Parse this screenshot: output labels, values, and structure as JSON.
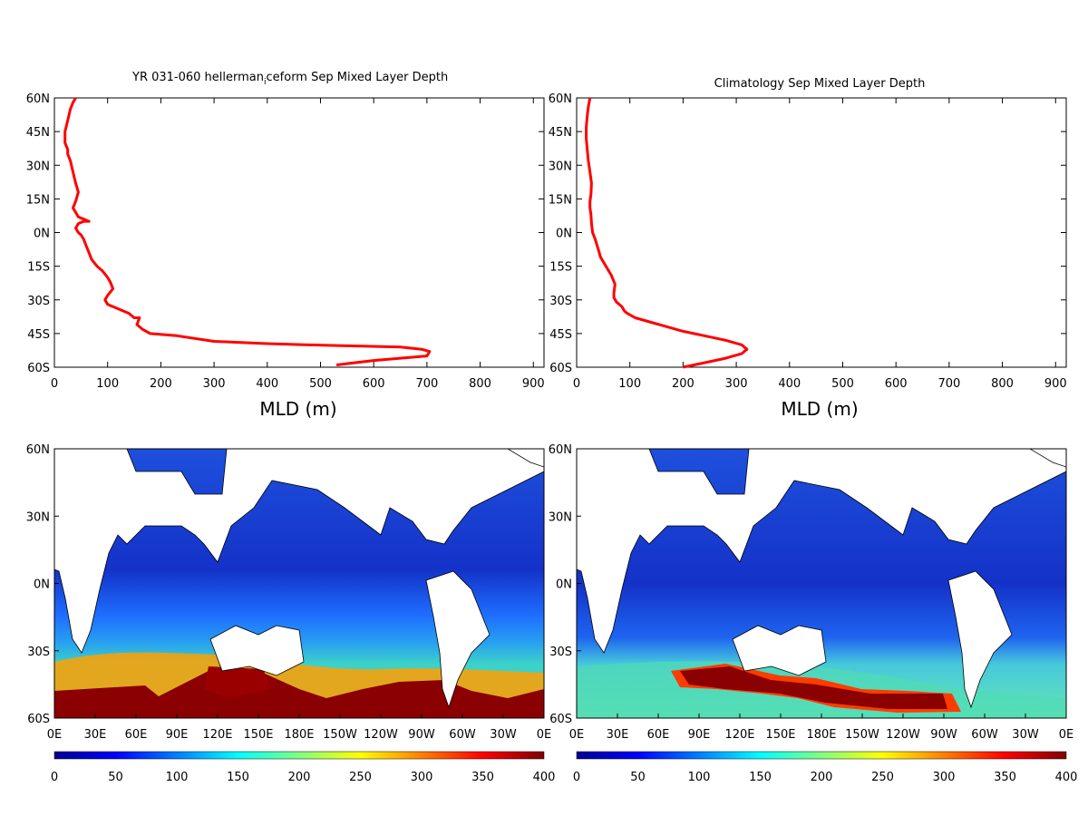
{
  "chart_data": [
    {
      "type": "line",
      "title": "YR 031-060 hellerman",
      "title_sub": "i",
      "title_rest": "ceform Sep Mixed Layer Depth",
      "xlabel": "MLD (m)",
      "ylabel": "",
      "xlim": [
        0,
        920
      ],
      "ylim": [
        -60,
        60
      ],
      "xticks": [
        "0",
        "100",
        "200",
        "300",
        "400",
        "500",
        "600",
        "700",
        "800",
        "900"
      ],
      "yticks": [
        "60N",
        "45N",
        "30N",
        "15N",
        "0N",
        "15S",
        "30S",
        "45S",
        "60S"
      ],
      "series": [
        {
          "color": "#ff0000",
          "x": [
            530,
            600,
            700,
            705,
            690,
            650,
            560,
            470,
            400,
            300,
            230,
            180,
            165,
            155,
            160,
            150,
            140,
            120,
            100,
            95,
            100,
            110,
            105,
            100,
            90,
            80,
            70,
            65,
            60,
            55,
            50,
            45,
            40,
            45,
            55,
            65,
            55,
            45,
            40,
            35,
            40,
            45,
            40,
            35,
            30,
            25,
            25,
            20,
            20,
            25,
            30,
            35,
            40
          ],
          "y": [
            -59,
            -57,
            -55,
            -53,
            -52,
            -51,
            -50.5,
            -50,
            -49.5,
            -48.5,
            -46,
            -45,
            -43,
            -41,
            -38,
            -38,
            -36,
            -34,
            -32,
            -30,
            -28,
            -25,
            -22,
            -20,
            -17,
            -15,
            -12,
            -9,
            -6,
            -3,
            -1,
            0,
            2,
            4,
            5,
            5,
            6,
            7,
            9,
            11,
            14,
            18,
            22,
            27,
            32,
            35,
            37,
            40,
            45,
            50,
            55,
            58,
            60
          ]
        }
      ]
    },
    {
      "type": "line",
      "title": "Climatology Sep Mixed Layer Depth",
      "xlabel": "MLD (m)",
      "ylabel": "",
      "xlim": [
        0,
        920
      ],
      "ylim": [
        -60,
        60
      ],
      "xticks": [
        "0",
        "100",
        "200",
        "300",
        "400",
        "500",
        "600",
        "700",
        "800",
        "900"
      ],
      "yticks": [
        "60N",
        "45N",
        "30N",
        "15N",
        "0N",
        "15S",
        "30S",
        "45S",
        "60S"
      ],
      "series": [
        {
          "color": "#ff0000",
          "x": [
            200,
            240,
            280,
            310,
            320,
            310,
            280,
            240,
            200,
            170,
            140,
            110,
            95,
            90,
            85,
            80,
            75,
            70,
            70,
            72,
            65,
            55,
            45,
            40,
            35,
            30,
            28,
            27,
            25,
            25,
            27,
            28,
            25,
            22,
            20,
            18,
            18,
            20,
            22,
            25
          ],
          "y": [
            -60,
            -58,
            -56,
            -54,
            -52,
            -50,
            -48,
            -46,
            -44,
            -42,
            -40,
            -38,
            -36,
            -35,
            -33,
            -32,
            -31,
            -29,
            -27,
            -23,
            -19,
            -15,
            -11,
            -7,
            -3,
            0,
            4,
            8,
            11,
            14,
            17,
            22,
            27,
            32,
            37,
            42,
            47,
            52,
            56,
            60
          ]
        }
      ]
    },
    {
      "type": "heatmap",
      "title": "",
      "xticks": [
        "0E",
        "30E",
        "60E",
        "90E",
        "120E",
        "150E",
        "180E",
        "150W",
        "120W",
        "90W",
        "60W",
        "30W",
        "0E"
      ],
      "yticks": [
        "60N",
        "30N",
        "0N",
        "30S",
        "60S"
      ],
      "colorbar": {
        "min": 0,
        "max": 400,
        "ticks": [
          "0",
          "50",
          "100",
          "150",
          "200",
          "250",
          "300",
          "350",
          "400"
        ]
      }
    },
    {
      "type": "heatmap",
      "title": "",
      "xticks": [
        "0E",
        "30E",
        "60E",
        "90E",
        "120E",
        "150E",
        "180E",
        "150W",
        "120W",
        "90W",
        "60W",
        "30W",
        "0E"
      ],
      "yticks": [
        "60N",
        "30N",
        "0N",
        "30S",
        "60S"
      ],
      "colorbar": {
        "min": 0,
        "max": 400,
        "ticks": [
          "0",
          "50",
          "100",
          "150",
          "200",
          "250",
          "300",
          "350",
          "400"
        ]
      }
    }
  ]
}
